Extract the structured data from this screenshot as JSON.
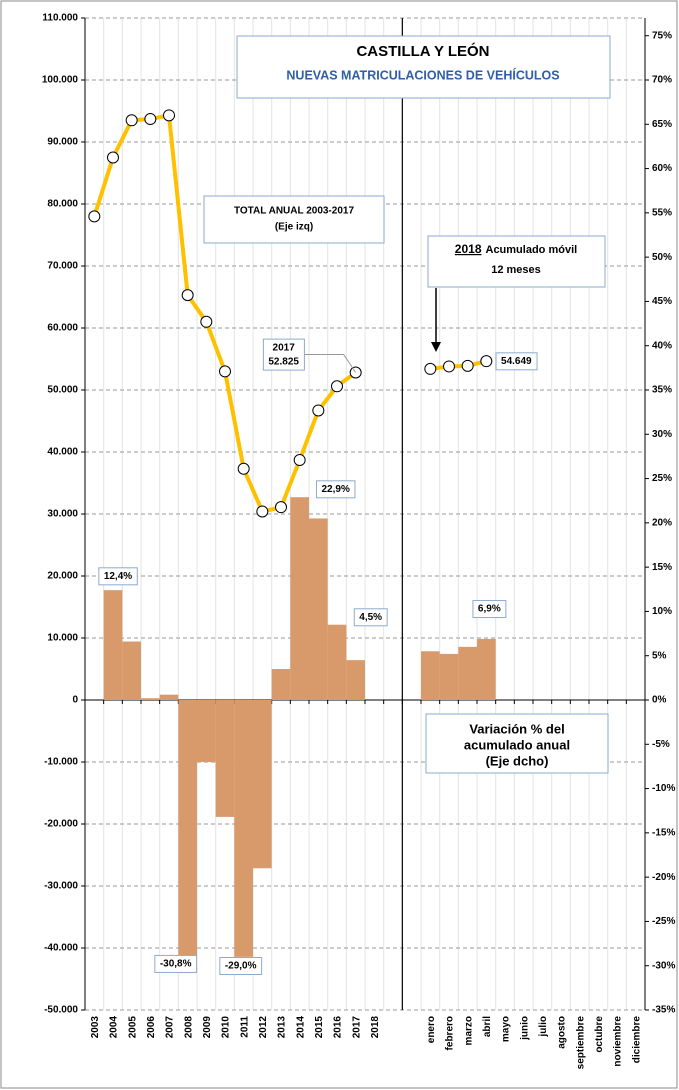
{
  "chart_data": {
    "type": "combo",
    "title": "CASTILLA Y LEÓN",
    "subtitle": "NUEVAS MATRICULACIONES DE VEHÍCULOS",
    "annotations": [
      {
        "lines": [
          "TOTAL ANUAL 2003-2017",
          "(Eje izq)"
        ]
      },
      {
        "lines": [
          "2018",
          "Acumulado móvil",
          "12 meses"
        ]
      },
      {
        "lines": [
          "Variación % del",
          "acumulado anual",
          "(Eje dcho)"
        ]
      }
    ],
    "categories": [
      "2003",
      "2004",
      "2005",
      "2006",
      "2007",
      "2008",
      "2009",
      "2010",
      "2011",
      "2012",
      "2013",
      "2014",
      "2015",
      "2016",
      "2017",
      "2018",
      null,
      null,
      "enero",
      "febrero",
      "marzo",
      "abril",
      "mayo",
      "junio",
      "julio",
      "agosto",
      "septiembre",
      "octubre",
      "noviembre",
      "diciembre"
    ],
    "series": [
      {
        "type": "bar",
        "axis": "y2",
        "color": "#d89a6b",
        "values": [
          null,
          12.4,
          6.6,
          0.2,
          0.6,
          -30.8,
          -7.0,
          -13.2,
          -29.0,
          -19.0,
          3.5,
          22.9,
          20.5,
          8.5,
          4.5,
          null,
          null,
          null,
          5.5,
          5.2,
          6.0,
          6.9,
          null,
          null,
          null,
          null,
          null,
          null,
          null,
          null
        ],
        "value_labels": [
          null,
          "12,4%",
          null,
          null,
          null,
          "-30,8%",
          null,
          null,
          "-29,0%",
          null,
          null,
          "22,9%",
          null,
          null,
          "4,5%",
          null,
          null,
          null,
          null,
          null,
          null,
          "6,9%",
          null,
          null,
          null,
          null,
          null,
          null,
          null,
          null
        ]
      },
      {
        "type": "line",
        "axis": "y",
        "color": "#ffc000",
        "values": [
          78000,
          87500,
          93500,
          93700,
          94300,
          65300,
          61000,
          53000,
          37300,
          30400,
          31100,
          38700,
          46700,
          50600,
          52825,
          null,
          null,
          null,
          53400,
          53800,
          53900,
          54649,
          null,
          null,
          null,
          null,
          null,
          null,
          null,
          null
        ],
        "value_labels": [
          null,
          null,
          null,
          null,
          null,
          null,
          null,
          null,
          null,
          null,
          null,
          null,
          null,
          null,
          "52.825",
          null,
          null,
          null,
          null,
          null,
          null,
          "54.649",
          null,
          null,
          null,
          null,
          null,
          null,
          null,
          null
        ]
      }
    ],
    "ylim": [
      -50000,
      110000
    ],
    "yticks": [
      {
        "value": -50000,
        "label": "-50.000"
      },
      {
        "value": -40000,
        "label": "-40.000"
      },
      {
        "value": -30000,
        "label": "-30.000"
      },
      {
        "value": -20000,
        "label": "-20.000"
      },
      {
        "value": -10000,
        "label": "-10.000"
      },
      0,
      {
        "value": 10000,
        "label": "10.000"
      },
      {
        "value": 20000,
        "label": "20.000"
      },
      {
        "value": 30000,
        "label": "30.000"
      },
      {
        "value": 40000,
        "label": "40.000"
      },
      {
        "value": 50000,
        "label": "50.000"
      },
      {
        "value": 60000,
        "label": "60.000"
      },
      {
        "value": 70000,
        "label": "70.000"
      },
      {
        "value": 80000,
        "label": "80.000"
      },
      {
        "value": 90000,
        "label": "90.000"
      },
      {
        "value": 100000,
        "label": "100.000"
      },
      {
        "value": 110000,
        "label": "110.000"
      }
    ],
    "y2lim": [
      -35,
      77
    ],
    "y2ticks": [
      {
        "value": -35,
        "label": "-35%"
      },
      {
        "value": -30,
        "label": "-30%"
      },
      {
        "value": -25,
        "label": "-25%"
      },
      {
        "value": -20,
        "label": "-20%"
      },
      {
        "value": -15,
        "label": "-15%"
      },
      {
        "value": -10,
        "label": "-10%"
      },
      {
        "value": -5,
        "label": "-5%"
      },
      {
        "value": 0,
        "label": "0%"
      },
      {
        "value": 5,
        "label": "5%"
      },
      {
        "value": 10,
        "label": "10%"
      },
      {
        "value": 15,
        "label": "15%"
      },
      {
        "value": 20,
        "label": "20%"
      },
      {
        "value": 25,
        "label": "25%"
      },
      {
        "value": 30,
        "label": "30%"
      },
      {
        "value": 35,
        "label": "35%"
      },
      {
        "value": 40,
        "label": "40%"
      },
      {
        "value": 45,
        "label": "45%"
      },
      {
        "value": 50,
        "label": "50%"
      },
      {
        "value": 55,
        "label": "55%"
      },
      {
        "value": 60,
        "label": "60%"
      },
      {
        "value": 65,
        "label": "65%"
      },
      {
        "value": 70,
        "label": "70%"
      },
      {
        "value": 75,
        "label": "75%"
      }
    ],
    "grid": true
  }
}
